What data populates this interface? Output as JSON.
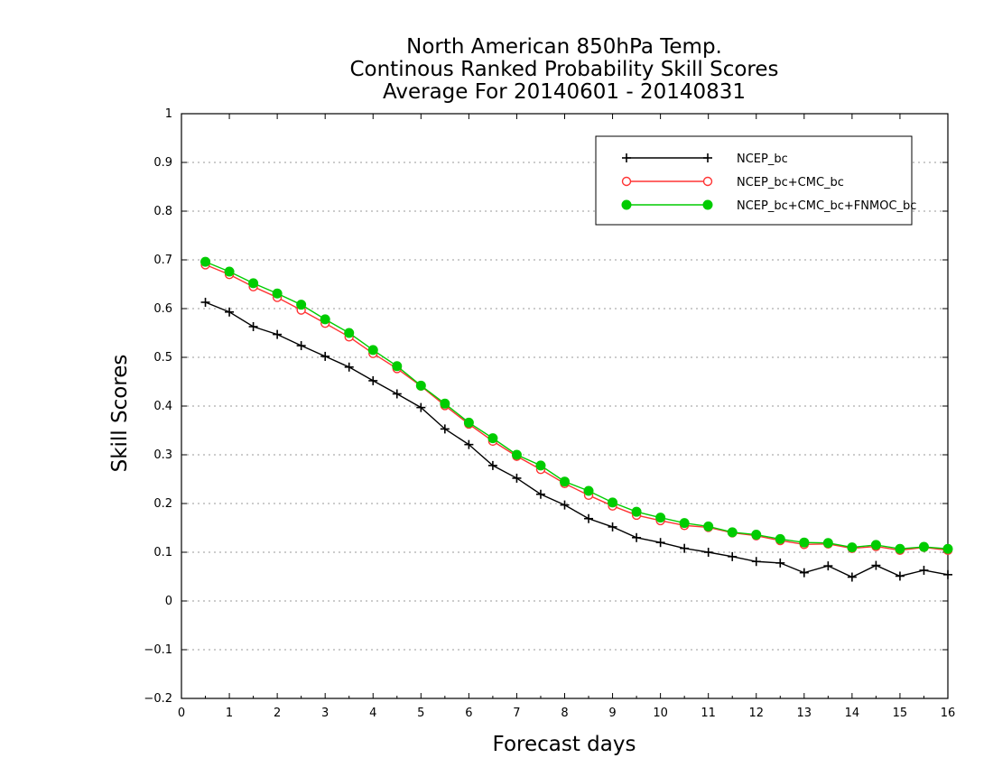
{
  "chart_data": {
    "type": "line",
    "title_lines": [
      "North American 850hPa Temp.",
      "Continous Ranked Probability Skill Scores",
      "Average For 20140601 - 20140831"
    ],
    "xlabel": "Forecast days",
    "ylabel": "Skill Scores",
    "xlim": [
      0,
      16
    ],
    "ylim": [
      -0.2,
      1
    ],
    "xticks": [
      0,
      1,
      2,
      3,
      4,
      5,
      6,
      7,
      8,
      9,
      10,
      11,
      12,
      13,
      14,
      15,
      16
    ],
    "yticks": [
      -0.2,
      -0.1,
      0,
      0.1,
      0.2,
      0.3,
      0.4,
      0.5,
      0.6,
      0.7,
      0.8,
      0.9,
      1
    ],
    "ytick_labels": [
      "−0.2",
      "−0.1",
      "0",
      "0.1",
      "0.2",
      "0.3",
      "0.4",
      "0.5",
      "0.6",
      "0.7",
      "0.8",
      "0.9",
      "1"
    ],
    "grid": "horizontal dotted",
    "legend_position": "top-right",
    "x": [
      0.5,
      1,
      1.5,
      2,
      2.5,
      3,
      3.5,
      4,
      4.5,
      5,
      5.5,
      6,
      6.5,
      7,
      7.5,
      8,
      8.5,
      9,
      9.5,
      10,
      10.5,
      11,
      11.5,
      12,
      12.5,
      13,
      13.5,
      14,
      14.5,
      15,
      15.5,
      16
    ],
    "series": [
      {
        "name": "NCEP_bc",
        "color": "#000000",
        "marker": "plus",
        "values": [
          0.613,
          0.593,
          0.563,
          0.547,
          0.524,
          0.502,
          0.48,
          0.452,
          0.425,
          0.397,
          0.353,
          0.321,
          0.278,
          0.252,
          0.219,
          0.197,
          0.169,
          0.152,
          0.13,
          0.12,
          0.108,
          0.1,
          0.091,
          0.081,
          0.078,
          0.058,
          0.072,
          0.049,
          0.073,
          0.051,
          0.063,
          0.054
        ]
      },
      {
        "name": "NCEP_bc+CMC_bc",
        "color": "#ff3333",
        "marker": "open-circle",
        "values": [
          0.69,
          0.67,
          0.645,
          0.623,
          0.597,
          0.57,
          0.542,
          0.508,
          0.477,
          0.441,
          0.401,
          0.363,
          0.328,
          0.297,
          0.27,
          0.241,
          0.217,
          0.195,
          0.176,
          0.165,
          0.155,
          0.151,
          0.14,
          0.134,
          0.124,
          0.116,
          0.117,
          0.108,
          0.112,
          0.104,
          0.11,
          0.104
        ]
      },
      {
        "name": "NCEP_bc+CMC_bc+FNMOC_bc",
        "color": "#00cc00",
        "marker": "filled-circle",
        "values": [
          0.696,
          0.676,
          0.652,
          0.631,
          0.608,
          0.578,
          0.55,
          0.515,
          0.482,
          0.442,
          0.405,
          0.366,
          0.334,
          0.3,
          0.278,
          0.245,
          0.226,
          0.202,
          0.183,
          0.171,
          0.16,
          0.153,
          0.141,
          0.136,
          0.127,
          0.12,
          0.119,
          0.11,
          0.115,
          0.107,
          0.111,
          0.107
        ]
      }
    ]
  }
}
